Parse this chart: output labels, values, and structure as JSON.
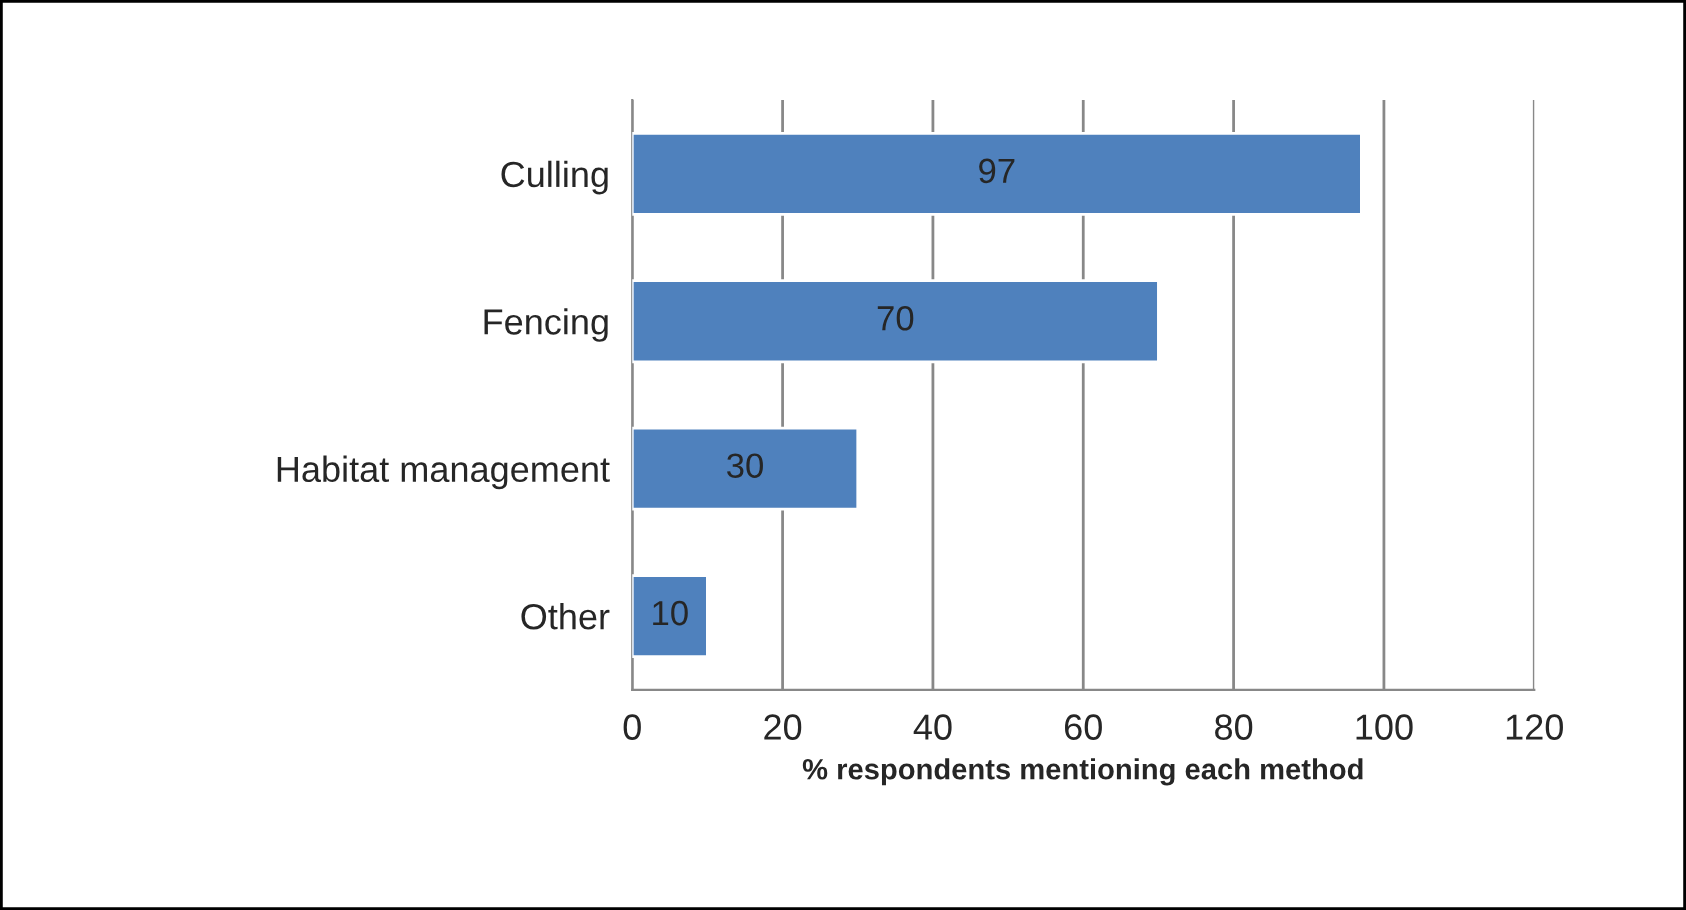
{
  "chart_data": {
    "type": "bar",
    "orientation": "horizontal",
    "categories": [
      "Culling",
      "Fencing",
      "Habitat management",
      "Other"
    ],
    "values": [
      97,
      70,
      30,
      10
    ],
    "color": "#4f81bd",
    "xlim": [
      0,
      120
    ],
    "xticks": [
      0,
      20,
      40,
      60,
      80,
      100,
      120
    ],
    "xlabel": "% respondents mentioning each method",
    "grid": "x",
    "data_labels": true,
    "legend": false
  }
}
